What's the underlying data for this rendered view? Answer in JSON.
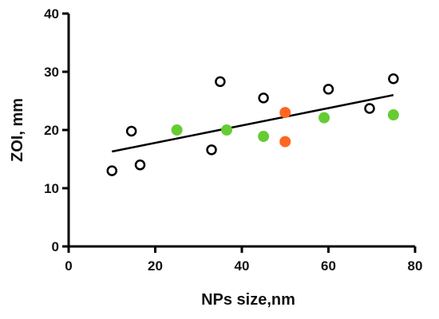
{
  "chart_data": {
    "type": "scatter",
    "title": "",
    "xlabel": "NPs size,nm",
    "ylabel": "ZOI, mm",
    "xlim": [
      0,
      80
    ],
    "ylim": [
      0,
      40
    ],
    "x_ticks": [
      0,
      20,
      40,
      60,
      80
    ],
    "y_ticks": [
      0,
      10,
      20,
      30,
      40
    ],
    "grid": false,
    "legend": "none",
    "series": [
      {
        "marker": "open-circle",
        "color": "#000000",
        "points": [
          {
            "x": 10,
            "y": 13.0
          },
          {
            "x": 14.5,
            "y": 19.8
          },
          {
            "x": 16.5,
            "y": 14.0
          },
          {
            "x": 33,
            "y": 16.6
          },
          {
            "x": 35,
            "y": 28.3
          },
          {
            "x": 45,
            "y": 25.5
          },
          {
            "x": 60,
            "y": 27.0
          },
          {
            "x": 69.5,
            "y": 23.7
          },
          {
            "x": 75,
            "y": 28.8
          }
        ]
      },
      {
        "marker": "filled-circle",
        "color": "#66cc33",
        "points": [
          {
            "x": 25,
            "y": 20.0
          },
          {
            "x": 36.5,
            "y": 20.0
          },
          {
            "x": 45,
            "y": 18.9
          },
          {
            "x": 59,
            "y": 22.1
          },
          {
            "x": 75,
            "y": 22.6
          }
        ]
      },
      {
        "marker": "filled-circle",
        "color": "#ff6622",
        "points": [
          {
            "x": 50,
            "y": 23.0
          },
          {
            "x": 50,
            "y": 18.0
          }
        ]
      }
    ],
    "trendline": {
      "type": "linear",
      "color": "#000000",
      "start": {
        "x": 10,
        "y": 16.3
      },
      "end": {
        "x": 75,
        "y": 26.0
      }
    }
  }
}
